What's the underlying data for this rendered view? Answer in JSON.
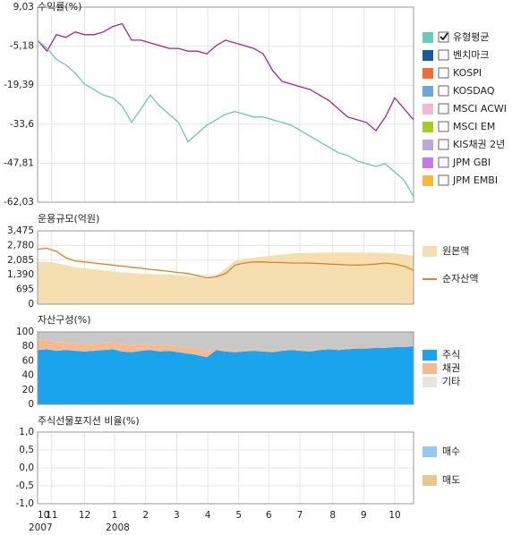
{
  "chart_data": [
    {
      "type": "line",
      "title": "수익률(%)",
      "xlim": [
        0,
        40
      ],
      "ylim": [
        -62.03,
        9.03
      ],
      "yticks": [
        {
          "value": 9.03,
          "label": "9,03"
        },
        {
          "value": -5.18,
          "label": "-5,18"
        },
        {
          "value": -19.39,
          "label": "-19,39"
        },
        {
          "value": -33.6,
          "label": "-33,6"
        },
        {
          "value": -47.81,
          "label": "-47,81"
        },
        {
          "value": -62.03,
          "label": "-62,03"
        }
      ],
      "grid": true,
      "series": [
        {
          "color": "#a3258d",
          "values": [
            -3,
            -7,
            -1,
            -2,
            0,
            -1,
            -1,
            0,
            2,
            3,
            -3,
            -3,
            -4,
            -5,
            -6,
            -6,
            -7,
            -7,
            -8,
            -5,
            -3,
            -4,
            -5,
            -6,
            -8,
            -14,
            -18,
            -19,
            -20,
            -21,
            -23,
            -25,
            -28,
            -31,
            -32,
            -33,
            -36,
            -31,
            -24,
            -28,
            -32
          ]
        },
        {
          "color": "#6cc4b6",
          "values": [
            -3,
            -6,
            -10,
            -12,
            -15,
            -19,
            -21,
            -23,
            -24,
            -27,
            -33,
            -28,
            -23,
            -27,
            -30,
            -33,
            -40,
            -37,
            -34,
            -32,
            -30,
            -29,
            -30,
            -31,
            -31,
            -32,
            -33,
            -34,
            -36,
            -38,
            -40,
            -42,
            -44,
            -45,
            -47,
            -48,
            -49,
            -48,
            -51,
            -54,
            -60
          ]
        }
      ],
      "legend": [
        {
          "name": "유형평균",
          "color": "#66ccbb",
          "checked": true
        },
        {
          "name": "벤치마크",
          "color": "#1a5a9e",
          "checked": false
        },
        {
          "name": "KOSPI",
          "color": "#f26b3a",
          "checked": false
        },
        {
          "name": "KOSDAQ",
          "color": "#6aa6dc",
          "checked": false
        },
        {
          "name": "MSCI ACWI",
          "color": "#f3b8d8",
          "checked": false
        },
        {
          "name": "MSCI EM",
          "color": "#a8cc22",
          "checked": false
        },
        {
          "name": "KIS채권 2년",
          "color": "#b8a8e0",
          "checked": false
        },
        {
          "name": "JPM GBI",
          "color": "#c878e8",
          "checked": false
        },
        {
          "name": "JPM EMBI",
          "color": "#f8b838",
          "checked": false
        }
      ]
    },
    {
      "type": "combo",
      "title": "운용규모(억원)",
      "xlim": [
        0,
        40
      ],
      "ylim": [
        0,
        3475
      ],
      "yticks": [
        {
          "value": 3475,
          "label": "3,475"
        },
        {
          "value": 2780,
          "label": "2,780"
        },
        {
          "value": 2085,
          "label": "2,085"
        },
        {
          "value": 1390,
          "label": "1,390"
        },
        695,
        0
      ],
      "grid": true,
      "series": [
        {
          "name": "원본액",
          "type": "area",
          "color": "#f5deb0",
          "values": [
            2000,
            2000,
            1950,
            1850,
            1750,
            1700,
            1650,
            1600,
            1550,
            1500,
            1480,
            1450,
            1430,
            1400,
            1380,
            1350,
            1330,
            1300,
            1280,
            1350,
            1700,
            2050,
            2150,
            2200,
            2250,
            2300,
            2350,
            2400,
            2420,
            2430,
            2440,
            2450,
            2450,
            2450,
            2450,
            2450,
            2440,
            2420,
            2400,
            2350,
            2300
          ]
        },
        {
          "name": "순자산액",
          "type": "line",
          "color": "#e0821e",
          "values": [
            2600,
            2650,
            2500,
            2200,
            2050,
            2000,
            1950,
            1900,
            1850,
            1800,
            1750,
            1700,
            1650,
            1600,
            1550,
            1500,
            1450,
            1350,
            1250,
            1300,
            1450,
            1850,
            1950,
            2000,
            2000,
            1980,
            1970,
            1950,
            1950,
            1940,
            1930,
            1900,
            1880,
            1860,
            1850,
            1870,
            1900,
            1950,
            1900,
            1800,
            1600
          ]
        }
      ]
    },
    {
      "type": "stacked_area",
      "title": "자산구성(%)",
      "xlim": [
        0,
        40
      ],
      "ylim": [
        0,
        100
      ],
      "yticks": [
        100,
        80,
        60,
        40,
        20,
        0
      ],
      "grid": true,
      "series": [
        {
          "name": "주식",
          "color": "#1ba4ee",
          "values": [
            75,
            76,
            74,
            75,
            74,
            73,
            74,
            75,
            76,
            73,
            72,
            74,
            75,
            73,
            74,
            72,
            70,
            68,
            65,
            75,
            73,
            72,
            73,
            74,
            73,
            72,
            74,
            75,
            74,
            73,
            75,
            76,
            75,
            76,
            77,
            77,
            78,
            78,
            79,
            79,
            80
          ]
        },
        {
          "name": "채권",
          "color": "#f7b990",
          "values": [
            15,
            13,
            12,
            10,
            11,
            10,
            10,
            9,
            10,
            11,
            10,
            9,
            8,
            9,
            8,
            8,
            9,
            9,
            8,
            3,
            3,
            2,
            2,
            2,
            2,
            2,
            2,
            2,
            2,
            2,
            2,
            2,
            2,
            2,
            2,
            2,
            2,
            1,
            1,
            1,
            1
          ]
        },
        {
          "name": "기타",
          "color": "#c8c8c8",
          "legend_color": "#e6e6de",
          "values": [
            10,
            11,
            14,
            15,
            15,
            17,
            16,
            16,
            14,
            16,
            18,
            17,
            17,
            18,
            18,
            20,
            21,
            23,
            27,
            22,
            24,
            26,
            25,
            24,
            25,
            26,
            24,
            23,
            24,
            25,
            23,
            22,
            23,
            22,
            21,
            21,
            20,
            21,
            20,
            20,
            19
          ]
        }
      ]
    },
    {
      "type": "bar",
      "title": "주식선물포지션 비율(%)",
      "xlim": [
        0,
        40
      ],
      "ylim": [
        -1,
        1
      ],
      "yticks": [
        {
          "value": 1,
          "label": "1,0"
        },
        {
          "value": 0.5,
          "label": "0,5"
        },
        {
          "value": 0,
          "label": "0,0"
        },
        {
          "value": -0.5,
          "label": "-0,5"
        },
        {
          "value": -1,
          "label": "-1,0"
        }
      ],
      "grid": true,
      "series": [
        {
          "name": "매수",
          "color": "#8ecbf2"
        },
        {
          "name": "매도",
          "color": "#e8c98c"
        }
      ],
      "xticks": [
        {
          "value": 0,
          "label": "10"
        },
        {
          "value": 1.5,
          "label": "11"
        },
        {
          "value": 5,
          "label": "12"
        },
        {
          "value": 8.2,
          "label": "1"
        },
        {
          "value": 11.5,
          "label": "2"
        },
        {
          "value": 14.8,
          "label": "3"
        },
        {
          "value": 18.1,
          "label": "4"
        },
        {
          "value": 21.4,
          "label": "5"
        },
        {
          "value": 24.6,
          "label": "6"
        },
        {
          "value": 27.9,
          "label": "7"
        },
        {
          "value": 31.4,
          "label": "8"
        },
        {
          "value": 34.7,
          "label": "9"
        },
        {
          "value": 38,
          "label": "10"
        }
      ],
      "year_ticks": [
        {
          "value": 0,
          "label": "2007"
        },
        {
          "value": 8.2,
          "label": "2008"
        }
      ]
    }
  ]
}
